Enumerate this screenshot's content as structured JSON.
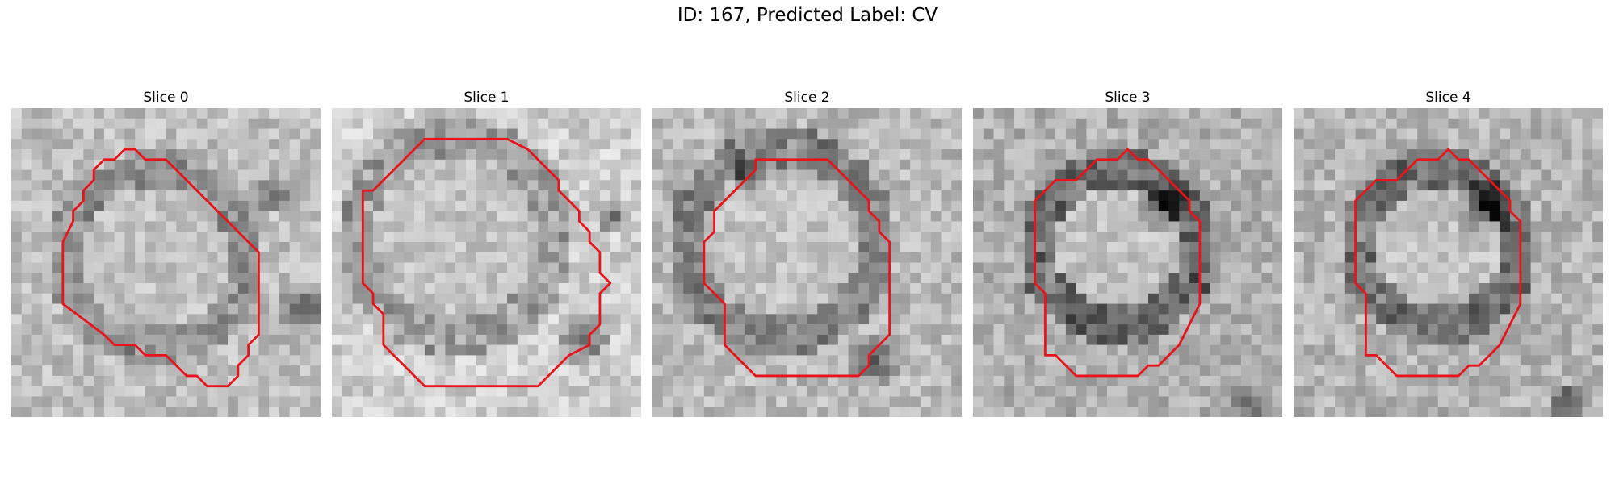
{
  "figure": {
    "title": "ID: 167, Predicted Label: CV"
  },
  "panels": [
    {
      "title": "Slice 0"
    },
    {
      "title": "Slice 1"
    },
    {
      "title": "Slice 2"
    },
    {
      "title": "Slice 3"
    },
    {
      "title": "Slice 4"
    }
  ],
  "colors": {
    "contour": "#e8141b",
    "background": "#ffffff"
  }
}
